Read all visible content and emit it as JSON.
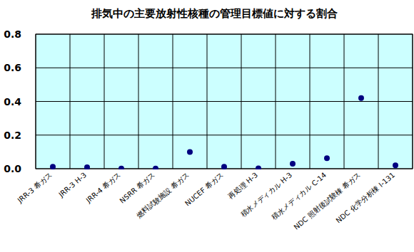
{
  "chart_data": {
    "type": "scatter",
    "title": "排気中の主要放射性核種の管理目標値に対する割合",
    "categories": [
      "JRR-3 希ガス",
      "JRR-3 H-3",
      "JRR-4 希ガス",
      "NSRR 希ガス",
      "燃料試験施設 希ガス",
      "NUCEF 希ガス",
      "再処理 H-3",
      "積水メディカル H-3",
      "積水メディカル C-14",
      "NDC 照射後試験棟 希ガス",
      "NDC 化学分析棟 I-131"
    ],
    "values": [
      0.012,
      0.008,
      0.001,
      0.001,
      0.1,
      0.012,
      0.002,
      0.03,
      0.062,
      0.42,
      0.02
    ],
    "color": "#000080",
    "marker": "circle",
    "ylim": [
      0,
      0.8
    ],
    "yticks": [
      {
        "value": 0,
        "label": "0.0"
      },
      {
        "value": 0.2,
        "label": "0.2"
      },
      {
        "value": 0.4,
        "label": "0.4"
      },
      {
        "value": 0.6,
        "label": "0.6"
      },
      {
        "value": 0.8,
        "label": "0.8"
      }
    ],
    "grid": true
  }
}
